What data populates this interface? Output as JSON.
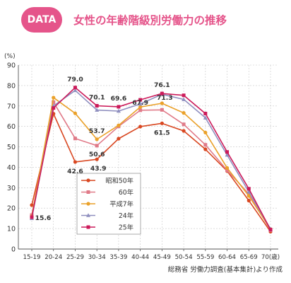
{
  "header": {
    "badge": "DATA",
    "title": "女性の年齢階級別労働力の推移"
  },
  "source": "総務省 労働力調査(基本集計)より作成",
  "chart_data": {
    "type": "line",
    "ylabel": "(%)",
    "xlabel": "",
    "ylim": [
      0,
      90
    ],
    "yticks": [
      0,
      10,
      20,
      30,
      40,
      50,
      60,
      70,
      80,
      90
    ],
    "grid": true,
    "legend_placement": "center-left",
    "categories": [
      "15-19",
      "20-24",
      "25-29",
      "30-34",
      "35-39",
      "40-44",
      "45-49",
      "50-54",
      "55-59",
      "60-64",
      "65-69",
      "70(歳)"
    ],
    "series": [
      {
        "name": "昭和50年",
        "color": "#d94822",
        "marker": "circle",
        "values": [
          21.5,
          66.2,
          42.6,
          43.9,
          54.0,
          59.9,
          61.5,
          57.8,
          48.8,
          38.2,
          23.7,
          8.5
        ]
      },
      {
        "name": "60年",
        "color": "#e07a88",
        "marker": "square",
        "values": [
          16.6,
          71.9,
          54.1,
          50.6,
          60.0,
          67.9,
          68.1,
          61.0,
          51.0,
          38.5,
          27.0,
          9.2
        ]
      },
      {
        "name": "平成7年",
        "color": "#eaa12a",
        "marker": "circle",
        "values": [
          16.0,
          74.1,
          66.4,
          53.7,
          60.5,
          69.5,
          71.3,
          66.6,
          57.0,
          39.7,
          26.0,
          9.8
        ]
      },
      {
        "name": "24年",
        "color": "#8f8fbf",
        "marker": "triangle",
        "values": [
          15.0,
          70.0,
          77.6,
          68.0,
          67.5,
          71.0,
          75.7,
          73.2,
          64.2,
          46.0,
          28.0,
          9.8
        ]
      },
      {
        "name": "25年",
        "color": "#cc1a5a",
        "marker": "square",
        "values": [
          15.6,
          69.0,
          79.0,
          70.1,
          69.6,
          73.0,
          76.1,
          75.2,
          66.3,
          47.5,
          29.5,
          9.5
        ]
      }
    ],
    "annotations": [
      {
        "text": "79.0",
        "series": 4,
        "index": 2
      },
      {
        "text": "70.1",
        "series": 4,
        "index": 3
      },
      {
        "text": "69.6",
        "series": 4,
        "index": 4
      },
      {
        "text": "76.1",
        "series": 4,
        "index": 6
      },
      {
        "text": "53.7",
        "series": 2,
        "index": 3
      },
      {
        "text": "67.9",
        "series": 1,
        "index": 5
      },
      {
        "text": "71.3",
        "series": 2,
        "index": 6
      },
      {
        "text": "50.6",
        "series": 1,
        "index": 3
      },
      {
        "text": "61.5",
        "series": 0,
        "index": 6
      },
      {
        "text": "42.6",
        "series": 0,
        "index": 2
      },
      {
        "text": "43.9",
        "series": 0,
        "index": 3
      },
      {
        "text": "15.6",
        "series": 4,
        "index": 0
      }
    ]
  }
}
